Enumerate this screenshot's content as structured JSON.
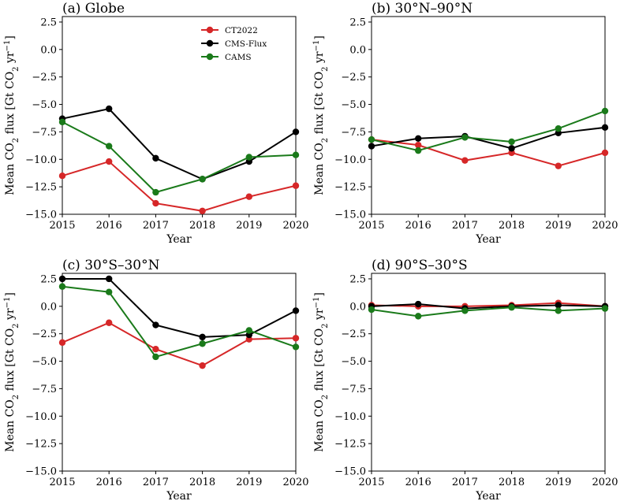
{
  "chart_data": [
    {
      "type": "line",
      "title": "(a) Globe",
      "xlabel": "Year",
      "ylabel": "Mean CO₂ flux [Gt CO₂ yr⁻¹]",
      "x": [
        2015,
        2016,
        2017,
        2018,
        2019,
        2020
      ],
      "xticks": [
        "2015",
        "2016",
        "2017",
        "2018",
        "2019",
        "2020"
      ],
      "ylim": [
        -15,
        3
      ],
      "yticks": [
        "2.5",
        "0.0",
        "−2.5",
        "−5.0",
        "−7.5",
        "−10.0",
        "−12.5",
        "−15.0"
      ],
      "legend": "top-right",
      "series": [
        {
          "name": "CT2022",
          "color": "#d62728",
          "values": [
            -11.5,
            -10.2,
            -14.0,
            -14.7,
            -13.4,
            -12.4
          ]
        },
        {
          "name": "CMS-Flux",
          "color": "#000000",
          "values": [
            -6.3,
            -5.4,
            -9.9,
            -11.8,
            -10.2,
            -7.5
          ]
        },
        {
          "name": "CAMS",
          "color": "#1a7a1a",
          "values": [
            -6.6,
            -8.8,
            -13.0,
            -11.8,
            -9.8,
            -9.6
          ]
        }
      ]
    },
    {
      "type": "line",
      "title": "(b) 30°N–90°N",
      "xlabel": "Year",
      "ylabel": "Mean CO₂ flux [Gt CO₂ yr⁻¹]",
      "x": [
        2015,
        2016,
        2017,
        2018,
        2019,
        2020
      ],
      "xticks": [
        "2015",
        "2016",
        "2017",
        "2018",
        "2019",
        "2020"
      ],
      "ylim": [
        -15,
        3
      ],
      "yticks": [
        "2.5",
        "0.0",
        "−2.5",
        "−5.0",
        "−7.5",
        "−10.0",
        "−12.5",
        "−15.0"
      ],
      "series": [
        {
          "name": "CT2022",
          "color": "#d62728",
          "values": [
            -8.2,
            -8.7,
            -10.1,
            -9.4,
            -10.6,
            -9.4
          ]
        },
        {
          "name": "CMS-Flux",
          "color": "#000000",
          "values": [
            -8.8,
            -8.1,
            -7.9,
            -9.0,
            -7.6,
            -7.1
          ]
        },
        {
          "name": "CAMS",
          "color": "#1a7a1a",
          "values": [
            -8.2,
            -9.2,
            -8.0,
            -8.4,
            -7.2,
            -5.6
          ]
        }
      ]
    },
    {
      "type": "line",
      "title": "(c) 30°S–30°N",
      "xlabel": "Year",
      "ylabel": "Mean CO₂ flux [Gt CO₂ yr⁻¹]",
      "x": [
        2015,
        2016,
        2017,
        2018,
        2019,
        2020
      ],
      "xticks": [
        "2015",
        "2016",
        "2017",
        "2018",
        "2019",
        "2020"
      ],
      "ylim": [
        -15,
        3
      ],
      "yticks": [
        "2.5",
        "0.0",
        "−2.5",
        "−5.0",
        "−7.5",
        "−10.0",
        "−12.5",
        "−15.0"
      ],
      "series": [
        {
          "name": "CT2022",
          "color": "#d62728",
          "values": [
            -3.3,
            -1.5,
            -3.9,
            -5.4,
            -3.0,
            -2.9
          ]
        },
        {
          "name": "CMS-Flux",
          "color": "#000000",
          "values": [
            2.5,
            2.5,
            -1.7,
            -2.8,
            -2.6,
            -0.4
          ]
        },
        {
          "name": "CAMS",
          "color": "#1a7a1a",
          "values": [
            1.8,
            1.3,
            -4.6,
            -3.4,
            -2.2,
            -3.7
          ]
        }
      ]
    },
    {
      "type": "line",
      "title": "(d) 90°S–30°S",
      "xlabel": "Year",
      "ylabel": "Mean CO₂ flux [Gt CO₂ yr⁻¹]",
      "x": [
        2015,
        2016,
        2017,
        2018,
        2019,
        2020
      ],
      "xticks": [
        "2015",
        "2016",
        "2017",
        "2018",
        "2019",
        "2020"
      ],
      "ylim": [
        -15,
        3
      ],
      "yticks": [
        "2.5",
        "0.0",
        "−2.5",
        "−5.0",
        "−7.5",
        "−10.0",
        "−12.5",
        "−15.0"
      ],
      "series": [
        {
          "name": "CT2022",
          "color": "#d62728",
          "values": [
            0.1,
            0.0,
            0.0,
            0.1,
            0.3,
            0.0
          ]
        },
        {
          "name": "CMS-Flux",
          "color": "#000000",
          "values": [
            0.0,
            0.2,
            -0.2,
            0.0,
            0.1,
            0.0
          ]
        },
        {
          "name": "CAMS",
          "color": "#1a7a1a",
          "values": [
            -0.3,
            -0.9,
            -0.4,
            -0.1,
            -0.4,
            -0.2
          ]
        }
      ]
    }
  ]
}
